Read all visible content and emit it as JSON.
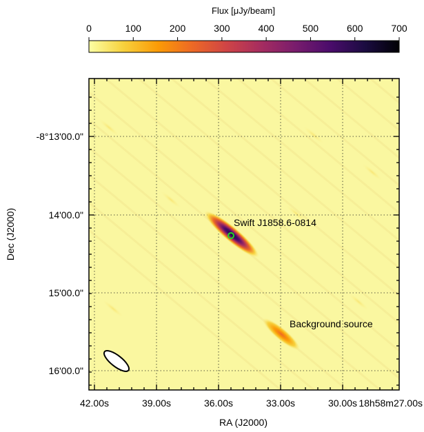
{
  "chart_data": {
    "type": "heatmap",
    "colorbar": {
      "label": "Flux [μJy/beam]",
      "range": [
        0,
        700
      ],
      "ticks": [
        "0",
        "100",
        "200",
        "300",
        "400",
        "500",
        "600",
        "700"
      ],
      "colormap": [
        "#fcffa4",
        "#f7d13d",
        "#fb9b06",
        "#ed6925",
        "#cf4446",
        "#a52c60",
        "#781c6d",
        "#4a0c6b",
        "#1b0c41",
        "#000004"
      ]
    },
    "xlabel": "RA (J2000)",
    "ylabel": "Dec (J2000)",
    "xticks": [
      "42.00s",
      "39.00s",
      "36.00s",
      "33.00s",
      "30.00s",
      "18h58m27.00s"
    ],
    "yticks": [
      "-8°13'00.0\"",
      "14'00.0\"",
      "15'00.0\"",
      "16'00.0\""
    ],
    "grid": true,
    "sources": [
      {
        "label": "Swift J1858.6-0814",
        "ra_s": 34.9,
        "dec_offset_min": 1.27,
        "peak_flux": 700
      },
      {
        "label": "Background source",
        "ra_s": 32.2,
        "dec_offset_min": 2.5,
        "peak_flux": 330
      }
    ],
    "marker_color": "#22dd22",
    "background_color": "#faf7a0",
    "beam_ellipse": true
  }
}
